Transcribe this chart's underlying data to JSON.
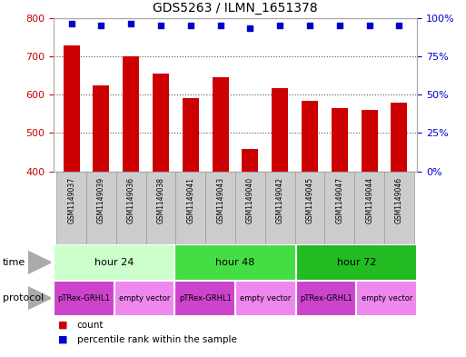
{
  "title": "GDS5263 / ILMN_1651378",
  "samples": [
    "GSM1149037",
    "GSM1149039",
    "GSM1149036",
    "GSM1149038",
    "GSM1149041",
    "GSM1149043",
    "GSM1149040",
    "GSM1149042",
    "GSM1149045",
    "GSM1149047",
    "GSM1149044",
    "GSM1149046"
  ],
  "counts": [
    728,
    625,
    700,
    655,
    590,
    645,
    458,
    618,
    583,
    565,
    560,
    578
  ],
  "percentiles": [
    96,
    95,
    96,
    95,
    95,
    95,
    93,
    95,
    95,
    95,
    95,
    95
  ],
  "ylim_left": [
    400,
    800
  ],
  "ylim_right": [
    0,
    100
  ],
  "yticks_left": [
    400,
    500,
    600,
    700,
    800
  ],
  "yticks_right": [
    0,
    25,
    50,
    75,
    100
  ],
  "bar_color": "#cc0000",
  "dot_color": "#0000cc",
  "bg_color": "#ffffff",
  "time_groups": [
    {
      "label": "hour 24",
      "start": 0,
      "end": 4,
      "color": "#ccffcc"
    },
    {
      "label": "hour 48",
      "start": 4,
      "end": 8,
      "color": "#44dd44"
    },
    {
      "label": "hour 72",
      "start": 8,
      "end": 12,
      "color": "#22bb22"
    }
  ],
  "protocol_groups": [
    {
      "label": "pTRex-GRHL1",
      "start": 0,
      "end": 2,
      "color": "#cc44cc"
    },
    {
      "label": "empty vector",
      "start": 2,
      "end": 4,
      "color": "#ee88ee"
    },
    {
      "label": "pTRex-GRHL1",
      "start": 4,
      "end": 6,
      "color": "#cc44cc"
    },
    {
      "label": "empty vector",
      "start": 6,
      "end": 8,
      "color": "#ee88ee"
    },
    {
      "label": "pTRex-GRHL1",
      "start": 8,
      "end": 10,
      "color": "#cc44cc"
    },
    {
      "label": "empty vector",
      "start": 10,
      "end": 12,
      "color": "#ee88ee"
    }
  ],
  "time_label": "time",
  "protocol_label": "protocol",
  "legend_count_label": "count",
  "legend_percentile_label": "percentile rank within the sample",
  "tick_color_left": "#cc0000",
  "tick_color_right": "#0000cc",
  "grid_color": "#555555",
  "bar_width": 0.55,
  "sample_bg": "#cccccc"
}
